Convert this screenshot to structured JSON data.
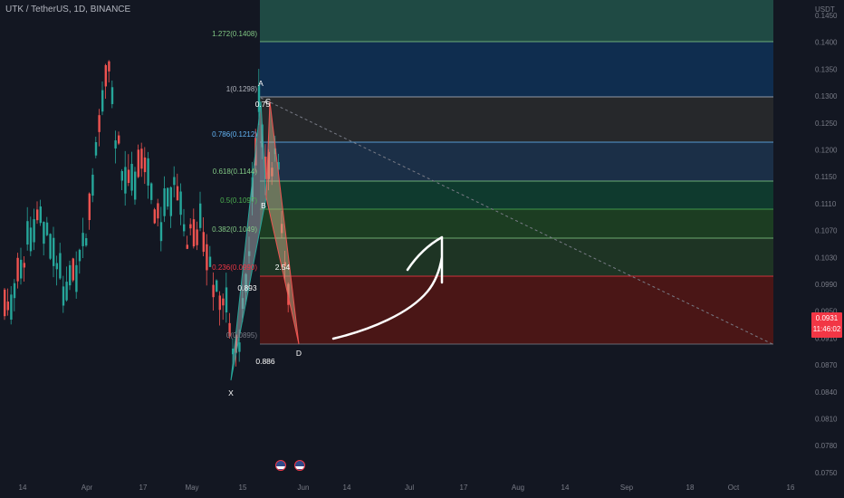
{
  "header": {
    "symbol_title": "UTK / TetherUS, 1D, BINANCE",
    "currency": "USDT"
  },
  "price_axis": {
    "ticks": [
      "0.1450",
      "0.1400",
      "0.1350",
      "0.1300",
      "0.1250",
      "0.1200",
      "0.1150",
      "0.1110",
      "0.1070",
      "0.1030",
      "0.0990",
      "0.0950",
      "0.0910",
      "0.0870",
      "0.0840",
      "0.0810",
      "0.0780",
      "0.0750"
    ]
  },
  "time_axis": {
    "ticks": [
      "14",
      "Apr",
      "17",
      "May",
      "15",
      "Jun",
      "14",
      "Jul",
      "17",
      "Aug",
      "14",
      "Sep",
      "18",
      "Oct",
      "16"
    ]
  },
  "fib_levels": [
    {
      "label": "1.272(0.1408)",
      "color": "#81c784"
    },
    {
      "label": "1(0.1298)",
      "color": "#b2b5be"
    },
    {
      "label": "0.786(0.1212)",
      "color": "#64b5f6"
    },
    {
      "label": "0.618(0.1144)",
      "color": "#81c784"
    },
    {
      "label": "0.5(0.1097)",
      "color": "#4caf50"
    },
    {
      "label": "0.382(0.1049)",
      "color": "#81c784"
    },
    {
      "label": "0.236(0.0990)",
      "color": "#f23645"
    },
    {
      "label": "0(0.0895)",
      "color": "#787b86"
    }
  ],
  "pattern": {
    "points": {
      "x": "X",
      "a": "A",
      "b": "B",
      "c": "C",
      "d": "D"
    },
    "ratios": {
      "ab": "0.893",
      "bc": "0.75",
      "cd": "2.54",
      "xd": "0.886"
    }
  },
  "last_price": {
    "value": "0.0931",
    "countdown": "11:46:02",
    "color": "#f23645"
  },
  "colors": {
    "bull": "#26a69a",
    "bear": "#ef5350",
    "background": "#131722"
  }
}
